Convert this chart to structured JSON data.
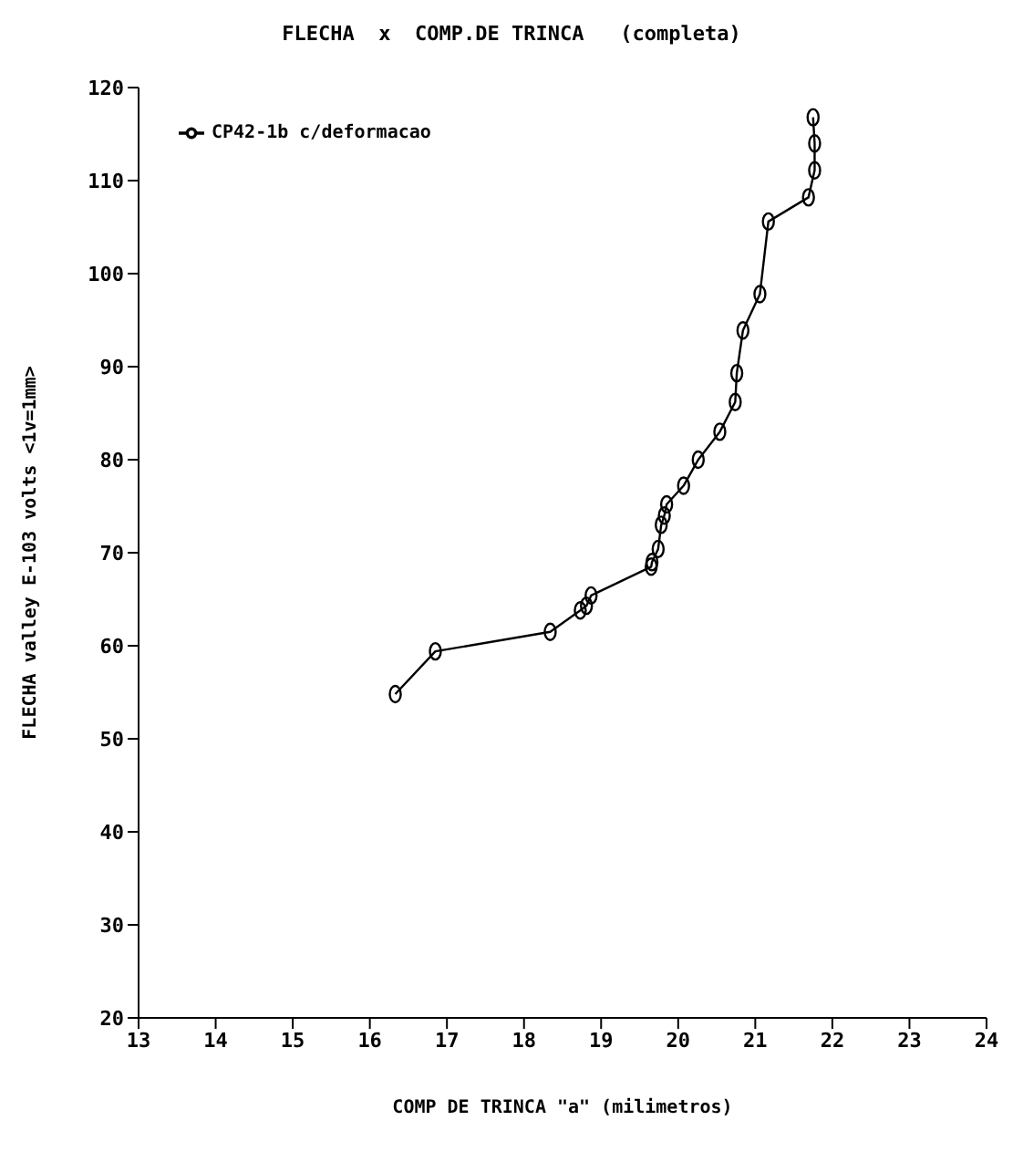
{
  "chart_data": {
    "type": "line",
    "title": "FLECHA  x  COMP.DE TRINCA   (completa)",
    "xlabel": "COMP DE TRINCA  \"a\"    (milimetros)",
    "ylabel": "FLECHA   valley E-103   volts   <1v=1mm>",
    "x": [
      16.33,
      16.85,
      18.34,
      18.73,
      18.81,
      18.87,
      19.65,
      19.66,
      19.74,
      19.78,
      19.82,
      19.85,
      20.07,
      20.26,
      20.54,
      20.74,
      20.76,
      20.84,
      21.06,
      21.17,
      21.69,
      21.77,
      21.77,
      21.75
    ],
    "series": [
      {
        "name": "CP42-1b  c/deformacao",
        "color": "#000000",
        "values": [
          54.8,
          59.4,
          61.5,
          63.8,
          64.3,
          65.4,
          68.5,
          69,
          70.4,
          73,
          74,
          75.2,
          77.2,
          80,
          83,
          86.2,
          89.3,
          93.9,
          97.8,
          105.6,
          108.2,
          111.1,
          114,
          116.8
        ]
      }
    ],
    "xlim": [
      13,
      24
    ],
    "xticks": [
      13,
      14,
      15,
      16,
      17,
      18,
      19,
      20,
      21,
      22,
      23,
      24
    ],
    "ylim": [
      20,
      120
    ],
    "yticks": [
      20,
      30,
      40,
      50,
      60,
      70,
      80,
      90,
      100,
      110,
      120
    ],
    "grid": false,
    "legend": "top left",
    "marker": "circle",
    "line_style": "solid"
  }
}
